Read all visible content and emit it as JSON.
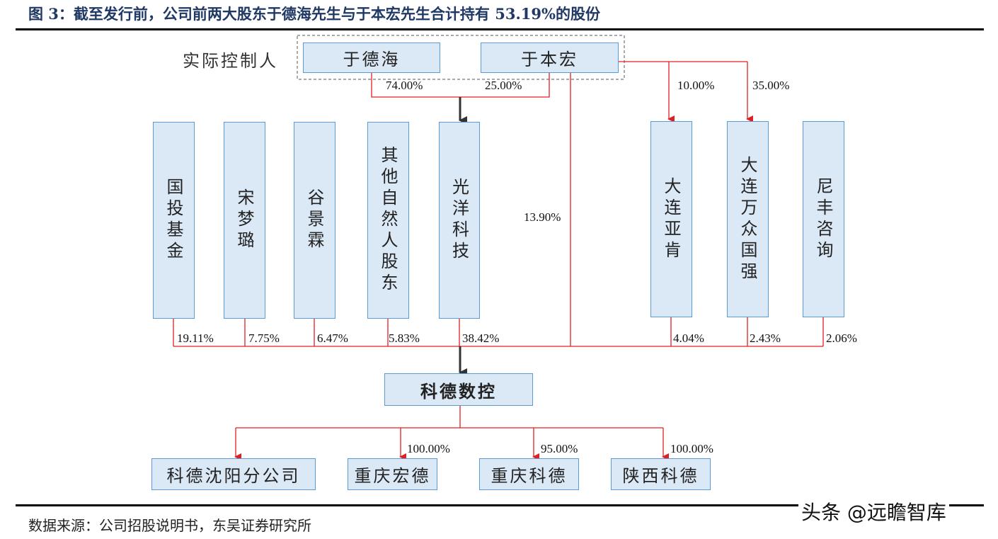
{
  "title": "图 3：截至发行前，公司前两大股东于德海先生与于本宏先生合计持有 53.19%的股份",
  "controller_label": "实际控制人",
  "controllers": [
    "于德海",
    "于本宏"
  ],
  "controller_pcts": [
    "74.00%",
    "25.00%"
  ],
  "direct_pct": "13.90%",
  "ybh_subsidiaries_pcts": [
    "10.00%",
    "35.00%"
  ],
  "shareholders": [
    {
      "name": "国投基金",
      "pct": "19.11%"
    },
    {
      "name": "宋梦璐",
      "pct": "7.75%"
    },
    {
      "name": "谷景霖",
      "pct": "6.47%"
    },
    {
      "name": "其他自然人股东",
      "pct": "5.83%"
    },
    {
      "name": "光洋科技",
      "pct": "38.42%"
    },
    {
      "name": "大连亚肯",
      "pct": "4.04%"
    },
    {
      "name": "大连万众国强",
      "pct": "2.43%"
    },
    {
      "name": "尼丰咨询",
      "pct": "2.06%"
    }
  ],
  "company": "科德数控",
  "subsidiaries": [
    {
      "name": "科德沈阳分公司",
      "pct": ""
    },
    {
      "name": "重庆宏德",
      "pct": "100.00%"
    },
    {
      "name": "重庆科德",
      "pct": "95.00%"
    },
    {
      "name": "陕西科德",
      "pct": "100.00%"
    }
  ],
  "source": "数据来源：公司招股说明书，东吴证券研究所",
  "watermark": "头条 @远瞻智库",
  "colors": {
    "title": "#1f3864",
    "box_fill": "#dbe8f6",
    "box_border": "#5b9bd5",
    "line": "#e02020"
  }
}
